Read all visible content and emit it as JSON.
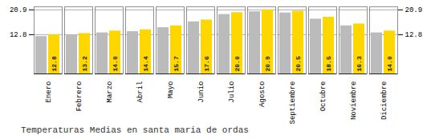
{
  "chart_data": {
    "type": "bar",
    "title": "Temperaturas Medias en santa maria de ordas",
    "categories": [
      "Enero",
      "Febrero",
      "Marzo",
      "Abril",
      "Mayo",
      "Junio",
      "Julio",
      "Agosto",
      "Septiembre",
      "Octubre",
      "Noviembre",
      "Diciembre"
    ],
    "series": [
      {
        "color": "#BBBBBB",
        "values": [
          12.2,
          12.6,
          13.4,
          13.8,
          15.1,
          17.0,
          19.4,
          20.3,
          19.9,
          17.9,
          15.7,
          13.4
        ]
      },
      {
        "color": "#FFD700",
        "values": [
          12.8,
          13.2,
          14.0,
          14.4,
          15.7,
          17.6,
          20.0,
          20.9,
          20.5,
          18.5,
          16.3,
          14.0
        ],
        "value_labels": [
          "12.8",
          "13.2",
          "14.0",
          "14.4",
          "15.7",
          "17.6",
          "20.0",
          "20.9",
          "20.5",
          "18.5",
          "16.3",
          "14.0"
        ],
        "data_labels": true
      }
    ],
    "ylim": [
      0,
      21.9
    ],
    "yticks": [
      12.8,
      20.9
    ],
    "grid": true
  }
}
